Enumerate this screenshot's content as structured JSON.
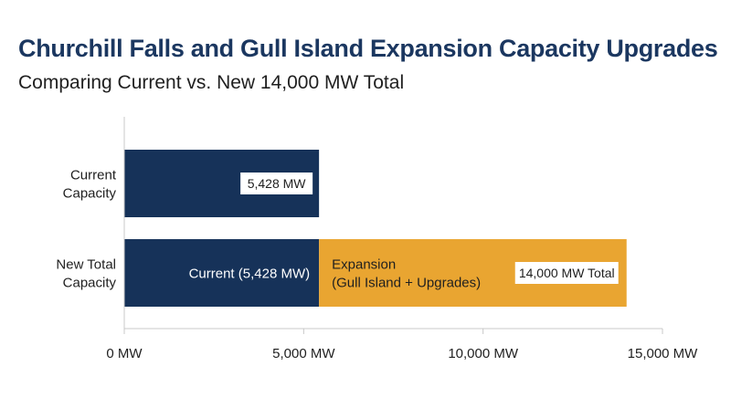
{
  "header": {
    "title": "Churchill Falls and Gull Island Expansion Capacity Upgrades",
    "subtitle": "Comparing Current vs. New 14,000 MW Total"
  },
  "colors": {
    "current": "#163259",
    "expansion": "#e9a531",
    "axis": "#c8c8c8",
    "text": "#1f1f1f",
    "title": "#1b3760"
  },
  "chart_data": {
    "type": "bar",
    "orientation": "horizontal",
    "stacked": true,
    "categories": [
      "Current\nCapacity",
      "New Total\nCapacity"
    ],
    "series": [
      {
        "name": "Current",
        "values": [
          5428,
          5428
        ]
      },
      {
        "name": "Expansion",
        "values": [
          0,
          8572
        ]
      }
    ],
    "xlim": [
      0,
      15000
    ],
    "xticks": [
      0,
      5000,
      10000,
      15000
    ],
    "xtick_labels": [
      "0 MW",
      "5,000 MW",
      "10,000 MW",
      "15,000 MW"
    ],
    "grid": false,
    "legend": "none",
    "annotations": {
      "current_value": "5,428 MW",
      "new_current_segment": "Current (5,428 MW)",
      "expansion_segment": "Expansion\n(Gull Island + Upgrades)",
      "total_value": "14,000 MW Total"
    }
  }
}
